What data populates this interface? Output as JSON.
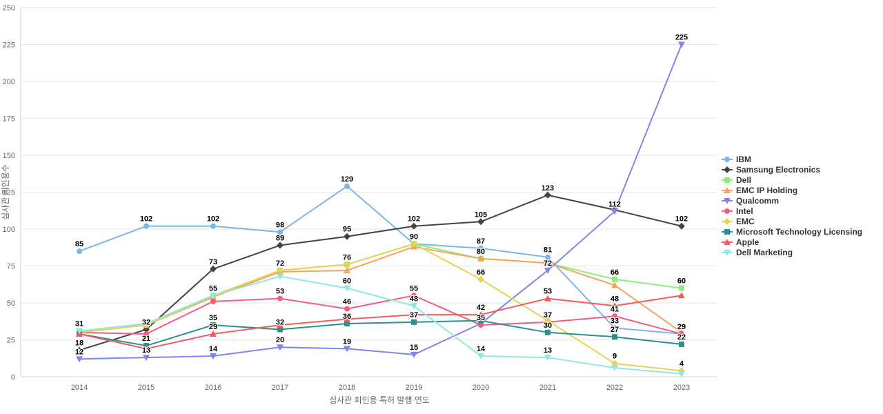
{
  "chart_data": {
    "type": "line",
    "title": "",
    "xlabel": "심사관 피인용 특허 발행 연도",
    "ylabel": "심사관 피인용수",
    "categories": [
      "2014",
      "2015",
      "2016",
      "2017",
      "2018",
      "2019",
      "2020",
      "2021",
      "2022",
      "2023"
    ],
    "ylim": [
      0,
      250
    ],
    "ytick_step": 25,
    "ytick_labels": [
      "0",
      "25",
      "50",
      "75",
      "100",
      "125",
      "150",
      "175",
      "200",
      "225",
      "250"
    ],
    "grid": true,
    "legend_position": "right",
    "colors": {
      "grid": "#e6e6e6",
      "axis_line": "#ccd6eb",
      "tick_text": "#666666",
      "legend_text": "#333333",
      "data_label_text": "#000000",
      "background": "#ffffff"
    },
    "series": [
      {
        "name": "IBM",
        "color": "#7cb5ec",
        "marker": "circle",
        "values": [
          85,
          102,
          102,
          98,
          129,
          90,
          87,
          81,
          33,
          29
        ],
        "labels": [
          85,
          102,
          102,
          98,
          129,
          null,
          87,
          81,
          33,
          null
        ]
      },
      {
        "name": "Samsung Electronics",
        "color": "#434348",
        "marker": "diamond",
        "values": [
          18,
          32,
          73,
          89,
          95,
          102,
          105,
          123,
          113,
          102
        ],
        "labels": [
          18,
          32,
          73,
          89,
          95,
          102,
          105,
          123,
          null,
          102
        ]
      },
      {
        "name": "Dell",
        "color": "#90ed7d",
        "marker": "square",
        "values": [
          31,
          36,
          55,
          72,
          76,
          90,
          80,
          77,
          66,
          60
        ],
        "labels": [
          null,
          null,
          55,
          72,
          76,
          90,
          80,
          null,
          66,
          60
        ]
      },
      {
        "name": "EMC IP Holding",
        "color": "#f7a35c",
        "marker": "triangle",
        "values": [
          30,
          35,
          54,
          71,
          72,
          88,
          80,
          77,
          62,
          30
        ],
        "labels": [
          null,
          null,
          null,
          null,
          null,
          null,
          null,
          null,
          null,
          null
        ]
      },
      {
        "name": "Qualcomm",
        "color": "#8085e9",
        "marker": "triangle-down",
        "values": [
          12,
          13,
          14,
          20,
          19,
          15,
          36,
          72,
          112,
          225
        ],
        "labels": [
          12,
          13,
          14,
          20,
          19,
          15,
          null,
          72,
          112,
          225
        ]
      },
      {
        "name": "Intel",
        "color": "#f15c80",
        "marker": "circle",
        "values": [
          30,
          29,
          51,
          53,
          46,
          55,
          35,
          37,
          41,
          29
        ],
        "labels": [
          null,
          null,
          null,
          53,
          46,
          55,
          35,
          37,
          41,
          29
        ]
      },
      {
        "name": "EMC",
        "color": "#e4d354",
        "marker": "diamond",
        "values": [
          30,
          35,
          55,
          72,
          76,
          90,
          66,
          38,
          9,
          4
        ],
        "labels": [
          null,
          null,
          null,
          null,
          null,
          null,
          66,
          null,
          9,
          4
        ]
      },
      {
        "name": "Microsoft Technology Licensing",
        "color": "#2b908f",
        "marker": "square",
        "values": [
          29,
          21,
          35,
          32,
          36,
          37,
          38,
          30,
          27,
          22
        ],
        "labels": [
          null,
          21,
          35,
          32,
          36,
          37,
          null,
          30,
          27,
          22
        ]
      },
      {
        "name": "Apple",
        "color": "#f45b5b",
        "marker": "triangle",
        "values": [
          29,
          19,
          29,
          35,
          39,
          42,
          42,
          53,
          48,
          55
        ],
        "labels": [
          null,
          null,
          29,
          null,
          null,
          null,
          42,
          53,
          48,
          null
        ]
      },
      {
        "name": "Dell Marketing",
        "color": "#91e8e1",
        "marker": "triangle-down",
        "values": [
          31,
          36,
          55,
          68,
          60,
          48,
          14,
          13,
          6,
          2
        ],
        "labels": [
          31,
          null,
          null,
          null,
          60,
          48,
          14,
          13,
          null,
          null
        ]
      }
    ]
  }
}
